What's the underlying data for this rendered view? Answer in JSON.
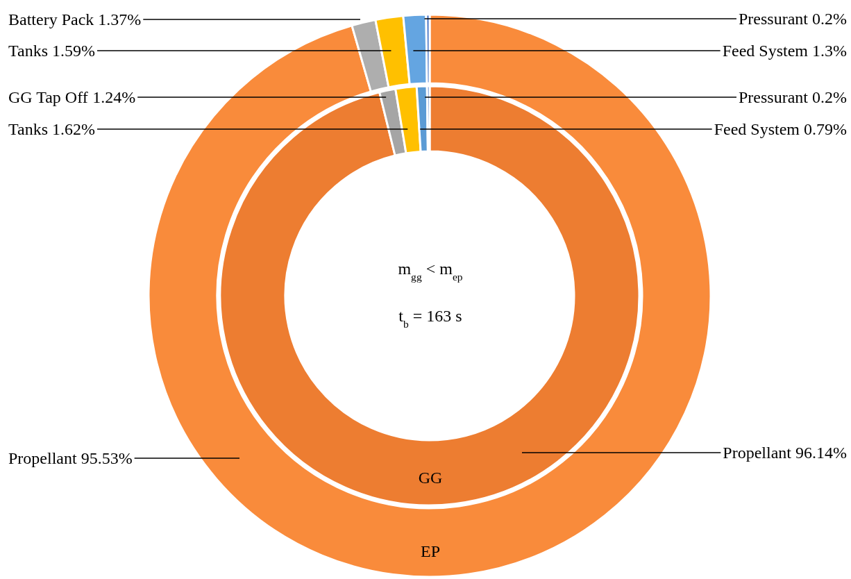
{
  "chart_data": [
    {
      "type": "donut",
      "title": "EP",
      "categories": [
        "Propellant",
        "Battery Pack",
        "Tanks",
        "Feed System",
        "Pressurant"
      ],
      "values": [
        95.53,
        1.37,
        1.59,
        1.3,
        0.2
      ],
      "colors": [
        "#f98b3b",
        "#aeaeae",
        "#ffc000",
        "#64a5e1",
        "#4472c4"
      ],
      "value_labels": [
        "95.53%",
        "1.37%",
        "1.59%",
        "1.3%",
        "0.2%"
      ],
      "annotations": [
        "m$_{gg}$ < m$_{ep}$",
        "t$_{b}$ = 163 s"
      ]
    },
    {
      "type": "donut",
      "title": "GG",
      "categories": [
        "Propellant",
        "GG Tap Off",
        "Tanks",
        "Feed System",
        "Pressurant"
      ],
      "values": [
        96.14,
        1.24,
        1.62,
        0.79,
        0.2
      ],
      "colors": [
        "#ed7d31",
        "#a5a5a5",
        "#ffc000",
        "#5b9bd5",
        "#4472c4"
      ],
      "value_labels": [
        "96.14%",
        "1.24%",
        "1.62%",
        "0.79%",
        "0.2%"
      ]
    }
  ]
}
